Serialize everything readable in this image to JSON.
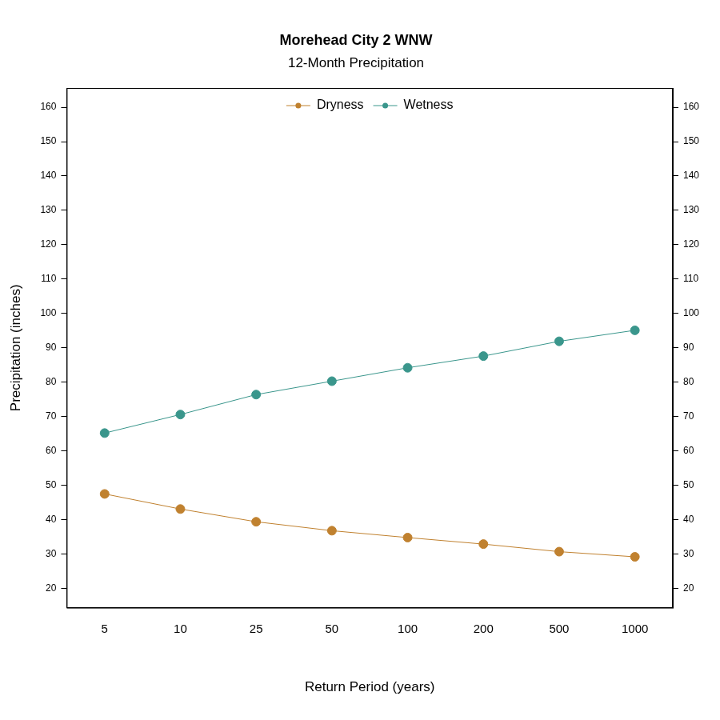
{
  "chart_data": {
    "type": "line",
    "title": "Morehead City 2 WNW",
    "subtitle": "12-Month Precipitation",
    "x_label": "Return Period (years)",
    "y_label": "Precipitation (inches)",
    "categories": [
      "5",
      "10",
      "25",
      "50",
      "100",
      "200",
      "500",
      "1000"
    ],
    "series": [
      {
        "name": "Dryness",
        "color": "#c0812f",
        "marker": "circle",
        "line_style": "solid",
        "values": [
          47.5,
          43.1,
          39.4,
          36.8,
          34.8,
          32.9,
          30.7,
          29.2
        ]
      },
      {
        "name": "Wetness",
        "color": "#3a968c",
        "marker": "circle",
        "line_style": "solid",
        "values": [
          65.2,
          70.6,
          76.4,
          80.3,
          84.2,
          87.6,
          91.9,
          95.1
        ]
      }
    ],
    "ylim": [
      14.4,
      165.6
    ],
    "yticks": [
      20,
      30,
      40,
      50,
      60,
      70,
      80,
      90,
      100,
      110,
      120,
      130,
      140,
      150,
      160
    ],
    "y2lim": [
      14.4,
      165.6
    ],
    "y2ticks": [
      20,
      30,
      40,
      50,
      60,
      70,
      80,
      90,
      100,
      110,
      120,
      130,
      140,
      150,
      160
    ],
    "grid": false,
    "legend": "top"
  }
}
